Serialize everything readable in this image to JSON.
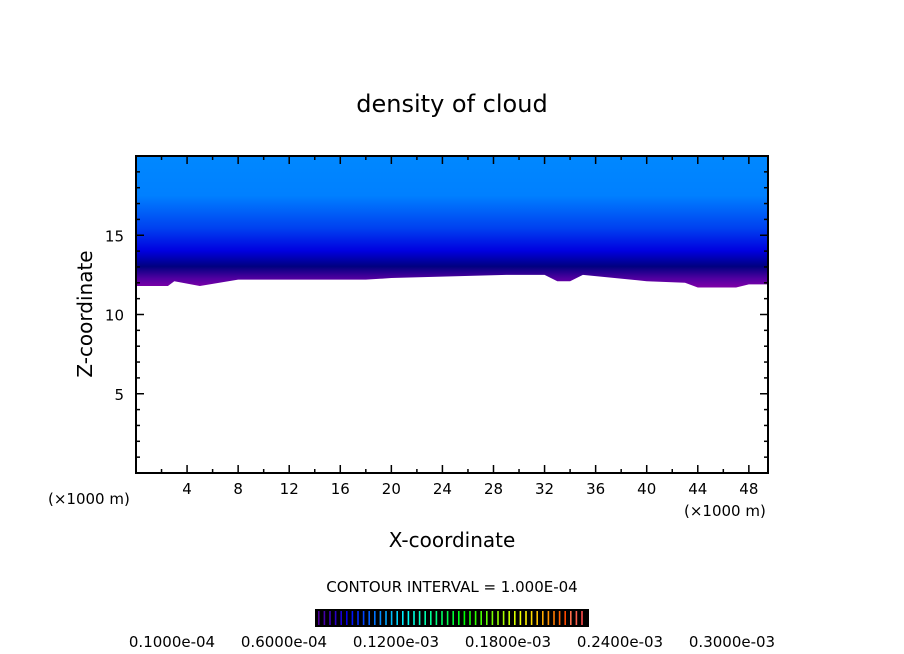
{
  "chart_data": {
    "type": "contour",
    "title": "density of cloud",
    "xlabel": "X-coordinate",
    "ylabel": "Z-coordinate",
    "x_unit_label": "(×1000 m)",
    "x_unit_label_right": "(×1000 m)",
    "xlim": [
      0,
      49.5
    ],
    "ylim": [
      0,
      20
    ],
    "xticks": [
      4,
      8,
      12,
      16,
      20,
      24,
      28,
      32,
      36,
      40,
      44,
      48
    ],
    "yticks": [
      5,
      10,
      15
    ],
    "cloud_base_z": [
      [
        0,
        11.8
      ],
      [
        2.5,
        11.8
      ],
      [
        3,
        12.1
      ],
      [
        5,
        11.8
      ],
      [
        8,
        12.2
      ],
      [
        16,
        12.2
      ],
      [
        18,
        12.2
      ],
      [
        20,
        12.3
      ],
      [
        29,
        12.5
      ],
      [
        32,
        12.5
      ],
      [
        33,
        12.1
      ],
      [
        34,
        12.1
      ],
      [
        35,
        12.5
      ],
      [
        40,
        12.1
      ],
      [
        43,
        12.0
      ],
      [
        44,
        11.7
      ],
      [
        47,
        11.7
      ],
      [
        48,
        11.9
      ],
      [
        49.5,
        11.9
      ]
    ],
    "cloud_top_z": 20,
    "contour_interval": "CONTOUR INTERVAL = 1.000E-04",
    "colorbar_labels": [
      "0.1000e-04",
      "0.6000e-04",
      "0.1200e-03",
      "0.1800e-03",
      "0.2400e-03",
      "0.3000e-03"
    ],
    "colors": {
      "top": "#0088ff",
      "mid": "#0010ee",
      "dark": "#000080",
      "base": "#8000a8"
    }
  }
}
